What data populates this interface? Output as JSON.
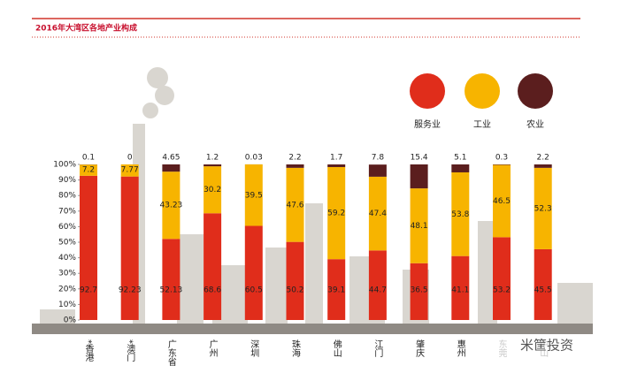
{
  "chart_data": {
    "type": "stacked-bar",
    "title": "2016年大湾区各地产业构成",
    "categories": [
      "*香港",
      "*澳门",
      "广东省",
      "广州",
      "深圳",
      "珠海",
      "佛山",
      "江门",
      "肇庆",
      "惠州",
      "东莞",
      "中山"
    ],
    "series": [
      {
        "name": "服务业",
        "color": "#e02d1b",
        "values": [
          92.7,
          92.23,
          52.13,
          68.6,
          60.5,
          50.2,
          39.1,
          44.7,
          36.5,
          41.1,
          53.2,
          45.5
        ]
      },
      {
        "name": "工业",
        "color": "#f7b400",
        "values": [
          7.2,
          7.77,
          43.23,
          30.2,
          39.5,
          47.6,
          59.2,
          47.4,
          48.1,
          53.8,
          46.5,
          52.3
        ]
      },
      {
        "name": "农业",
        "color": "#5b1e1e",
        "values": [
          0.1,
          0,
          4.65,
          1.2,
          0.03,
          2.2,
          1.7,
          7.8,
          15.4,
          5.1,
          0.3,
          2.2
        ]
      }
    ],
    "ylim": [
      0,
      100
    ],
    "yticks": [
      {
        "value": 0,
        "label": "0%"
      },
      {
        "value": 10,
        "label": "10%"
      },
      {
        "value": 20,
        "label": "20%"
      },
      {
        "value": 30,
        "label": "30%"
      },
      {
        "value": 40,
        "label": "40%"
      },
      {
        "value": 50,
        "label": "50%"
      },
      {
        "value": 60,
        "label": "60%"
      },
      {
        "value": 70,
        "label": "70%"
      },
      {
        "value": 80,
        "label": "80%"
      },
      {
        "value": 90,
        "label": "90%"
      },
      {
        "value": 100,
        "label": "100%"
      }
    ],
    "watermark": "米筐投资"
  }
}
